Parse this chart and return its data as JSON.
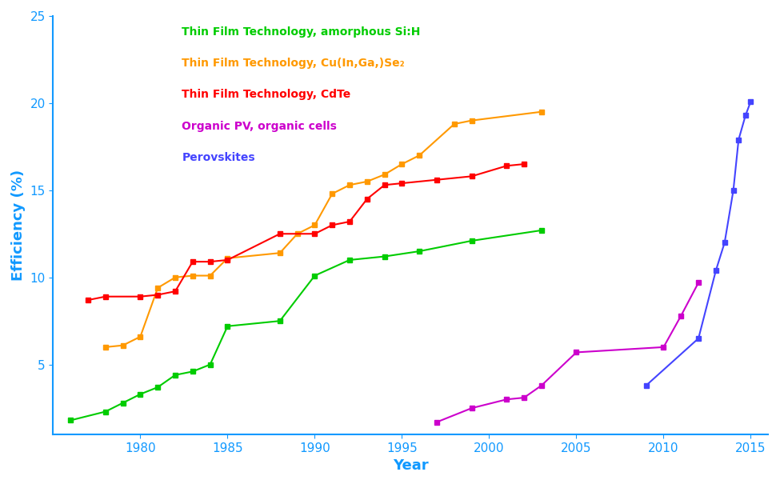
{
  "xlabel": "Year",
  "ylabel": "Efficiency (%)",
  "xlim": [
    1975,
    2016
  ],
  "ylim": [
    1,
    25
  ],
  "yticks": [
    5,
    10,
    15,
    20,
    25
  ],
  "xticks": [
    1980,
    1985,
    1990,
    1995,
    2000,
    2005,
    2010,
    2015
  ],
  "series": [
    {
      "label": "Thin Film Technology, amorphous Si:H",
      "color": "#00cc00",
      "x": [
        1976,
        1978,
        1979,
        1980,
        1981,
        1982,
        1983,
        1984,
        1985,
        1988,
        1990,
        1992,
        1994,
        1996,
        1999,
        2003
      ],
      "y": [
        1.8,
        2.3,
        2.8,
        3.3,
        3.7,
        4.4,
        4.6,
        5.0,
        7.2,
        7.5,
        10.1,
        11.0,
        11.2,
        11.5,
        12.1,
        12.7
      ]
    },
    {
      "label": "Thin Film Technology, Cu(In,Ga,)Se₂",
      "color": "#ff9900",
      "x": [
        1978,
        1979,
        1980,
        1981,
        1982,
        1983,
        1984,
        1985,
        1988,
        1989,
        1990,
        1991,
        1992,
        1993,
        1994,
        1995,
        1996,
        1998,
        1999,
        2003
      ],
      "y": [
        6.0,
        6.1,
        6.6,
        9.4,
        10.0,
        10.1,
        10.1,
        11.1,
        11.4,
        12.5,
        13.0,
        14.8,
        15.3,
        15.5,
        15.9,
        16.5,
        17.0,
        18.8,
        19.0,
        19.5
      ]
    },
    {
      "label": "Thin Film Technology, CdTe",
      "color": "#ff0000",
      "x": [
        1977,
        1978,
        1980,
        1981,
        1982,
        1983,
        1984,
        1985,
        1988,
        1990,
        1991,
        1992,
        1993,
        1994,
        1995,
        1997,
        1999,
        2001,
        2002
      ],
      "y": [
        8.7,
        8.9,
        8.9,
        9.0,
        9.2,
        10.9,
        10.9,
        11.0,
        12.5,
        12.5,
        13.0,
        13.2,
        14.5,
        15.3,
        15.4,
        15.6,
        15.8,
        16.4,
        16.5
      ]
    },
    {
      "label": "Organic PV, organic cells",
      "color": "#cc00cc",
      "x": [
        1997,
        1999,
        2001,
        2002,
        2003,
        2005,
        2010,
        2011,
        2012
      ],
      "y": [
        1.7,
        2.5,
        3.0,
        3.1,
        3.8,
        5.7,
        6.0,
        7.8,
        9.7
      ]
    },
    {
      "label": "Perovskites",
      "color": "#4444ff",
      "x": [
        2009,
        2012,
        2013,
        2013.5,
        2014,
        2014.3,
        2014.7,
        2015
      ],
      "y": [
        3.8,
        6.5,
        10.4,
        12.0,
        15.0,
        17.9,
        19.3,
        20.1
      ]
    }
  ],
  "axis_color": "#1199ff",
  "label_color": "#1199ff",
  "tick_color": "#1199ff",
  "legend_entries": [
    {
      "label": "Thin Film Technology, amorphous Si:H",
      "color": "#00cc00"
    },
    {
      "label": "Thin Film Technology, Cu(In,Ga,)Se₂",
      "color": "#ff9900"
    },
    {
      "label": "Thin Film Technology, CdTe",
      "color": "#ff0000"
    },
    {
      "label": "Organic PV, organic cells",
      "color": "#cc00cc"
    },
    {
      "label": "Perovskites",
      "color": "#4444ff"
    }
  ]
}
